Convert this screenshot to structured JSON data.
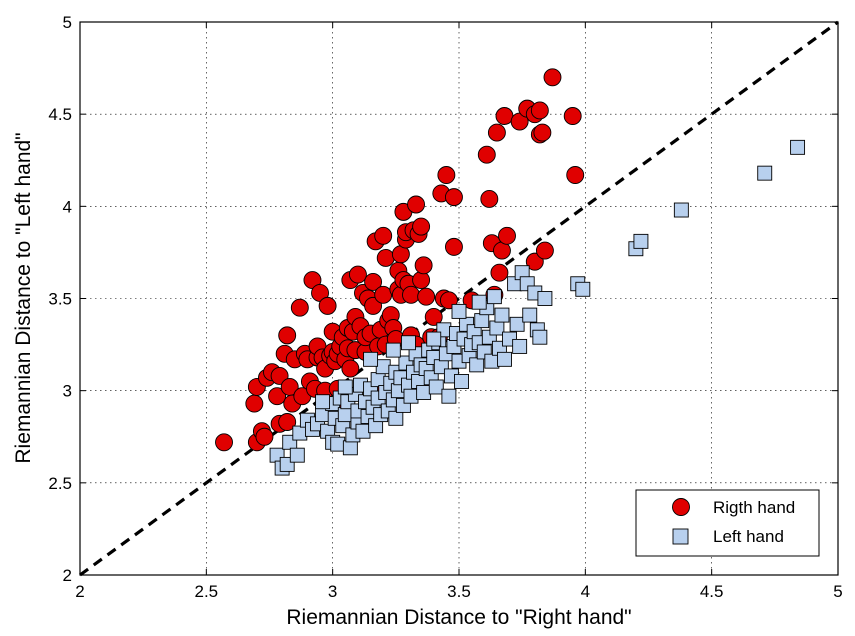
{
  "chart_data": {
    "type": "scatter",
    "title": "",
    "xlabel": "Riemannian Distance to \"Right hand\"",
    "ylabel": "Riemannian Distance to \"Left hand\"",
    "xlim": [
      2,
      5
    ],
    "ylim": [
      2,
      5
    ],
    "xticks": [
      "2",
      "2.5",
      "3",
      "3.5",
      "4",
      "4.5",
      "5"
    ],
    "yticks": [
      "2",
      "2.5",
      "3",
      "3.5",
      "4",
      "4.5",
      "5"
    ],
    "grid": true,
    "reference_line": {
      "style": "dashed",
      "from": [
        2,
        2
      ],
      "to": [
        5,
        5
      ]
    },
    "legend_position": "bottom-right",
    "colors": {
      "right": "#e00000",
      "left": "#b8d0ee",
      "edge": "#000000"
    },
    "series": [
      {
        "name": "Rigth hand",
        "marker": "circle",
        "points": [
          [
            2.57,
            2.72
          ],
          [
            2.69,
            2.93
          ],
          [
            2.7,
            2.72
          ],
          [
            2.7,
            3.02
          ],
          [
            2.72,
            2.78
          ],
          [
            2.73,
            2.75
          ],
          [
            2.74,
            3.07
          ],
          [
            2.76,
            3.1
          ],
          [
            2.78,
            2.97
          ],
          [
            2.79,
            3.08
          ],
          [
            2.79,
            2.82
          ],
          [
            2.81,
            3.2
          ],
          [
            2.82,
            3.3
          ],
          [
            2.83,
            3.02
          ],
          [
            2.84,
            2.93
          ],
          [
            2.85,
            3.17
          ],
          [
            2.87,
            3.45
          ],
          [
            2.88,
            2.97
          ],
          [
            2.89,
            3.2
          ],
          [
            2.9,
            3.17
          ],
          [
            2.91,
            3.05
          ],
          [
            2.92,
            3.6
          ],
          [
            2.93,
            3.01
          ],
          [
            2.94,
            3.18
          ],
          [
            2.94,
            3.24
          ],
          [
            2.95,
            3.53
          ],
          [
            2.96,
            3.18
          ],
          [
            2.97,
            3.12
          ],
          [
            2.97,
            3.0
          ],
          [
            2.98,
            3.46
          ],
          [
            2.99,
            3.19
          ],
          [
            3.0,
            3.32
          ],
          [
            3.0,
            3.21
          ],
          [
            3.01,
            3.16
          ],
          [
            3.02,
            3.2
          ],
          [
            3.02,
            3.01
          ],
          [
            3.03,
            3.24
          ],
          [
            3.04,
            3.29
          ],
          [
            3.05,
            3.17
          ],
          [
            3.06,
            3.34
          ],
          [
            3.06,
            3.23
          ],
          [
            3.07,
            3.6
          ],
          [
            3.07,
            3.12
          ],
          [
            3.08,
            3.32
          ],
          [
            3.09,
            3.22
          ],
          [
            3.09,
            3.4
          ],
          [
            3.1,
            3.63
          ],
          [
            3.11,
            3.35
          ],
          [
            3.12,
            3.53
          ],
          [
            3.13,
            3.21
          ],
          [
            3.13,
            3.29
          ],
          [
            3.14,
            3.5
          ],
          [
            3.15,
            3.31
          ],
          [
            3.16,
            3.46
          ],
          [
            3.16,
            3.59
          ],
          [
            3.17,
            3.81
          ],
          [
            3.18,
            3.24
          ],
          [
            3.19,
            3.33
          ],
          [
            3.2,
            3.84
          ],
          [
            3.2,
            3.52
          ],
          [
            3.21,
            3.72
          ],
          [
            3.21,
            3.25
          ],
          [
            3.22,
            3.38
          ],
          [
            3.23,
            3.41
          ],
          [
            3.24,
            3.34
          ],
          [
            3.25,
            3.28
          ],
          [
            3.26,
            3.55
          ],
          [
            3.26,
            3.65
          ],
          [
            3.27,
            3.74
          ],
          [
            3.27,
            3.52
          ],
          [
            3.28,
            3.6
          ],
          [
            3.28,
            3.97
          ],
          [
            3.29,
            3.82
          ],
          [
            3.29,
            3.86
          ],
          [
            3.3,
            3.58
          ],
          [
            3.31,
            3.3
          ],
          [
            3.31,
            3.52
          ],
          [
            3.32,
            3.87
          ],
          [
            3.33,
            4.01
          ],
          [
            3.33,
            3.25
          ],
          [
            3.34,
            3.85
          ],
          [
            3.35,
            3.89
          ],
          [
            3.35,
            3.6
          ],
          [
            3.36,
            3.68
          ],
          [
            3.37,
            3.51
          ],
          [
            3.38,
            3.2
          ],
          [
            3.39,
            3.29
          ],
          [
            3.4,
            3.4
          ],
          [
            3.42,
            3.29
          ],
          [
            3.43,
            4.07
          ],
          [
            3.44,
            3.5
          ],
          [
            3.45,
            4.17
          ],
          [
            3.46,
            3.49
          ],
          [
            3.48,
            4.05
          ],
          [
            3.48,
            3.78
          ],
          [
            3.55,
            3.49
          ],
          [
            3.61,
            4.28
          ],
          [
            3.62,
            4.04
          ],
          [
            3.63,
            3.8
          ],
          [
            3.64,
            3.52
          ],
          [
            3.65,
            4.4
          ],
          [
            3.66,
            3.64
          ],
          [
            3.67,
            3.76
          ],
          [
            3.68,
            4.49
          ],
          [
            3.69,
            3.84
          ],
          [
            3.74,
            4.46
          ],
          [
            3.77,
            4.53
          ],
          [
            3.8,
            4.5
          ],
          [
            3.82,
            4.52
          ],
          [
            3.82,
            4.39
          ],
          [
            3.83,
            4.4
          ],
          [
            3.8,
            3.7
          ],
          [
            3.84,
            3.76
          ],
          [
            3.87,
            4.7
          ],
          [
            3.95,
            4.49
          ],
          [
            3.96,
            4.17
          ],
          [
            2.82,
            2.83
          ],
          [
            3.04,
            2.95
          ],
          [
            3.19,
            3.02
          ],
          [
            3.36,
            3.05
          ]
        ]
      },
      {
        "name": "Left hand",
        "marker": "square",
        "points": [
          [
            2.78,
            2.65
          ],
          [
            2.8,
            2.58
          ],
          [
            2.82,
            2.6
          ],
          [
            2.83,
            2.72
          ],
          [
            2.86,
            2.65
          ],
          [
            2.87,
            2.77
          ],
          [
            2.9,
            2.84
          ],
          [
            2.92,
            2.79
          ],
          [
            2.94,
            2.82
          ],
          [
            2.96,
            2.87
          ],
          [
            2.98,
            2.78
          ],
          [
            3.0,
            2.93
          ],
          [
            3.0,
            2.72
          ],
          [
            3.01,
            2.85
          ],
          [
            3.02,
            2.71
          ],
          [
            3.03,
            2.96
          ],
          [
            3.04,
            2.81
          ],
          [
            3.05,
            2.87
          ],
          [
            3.06,
            2.94
          ],
          [
            3.07,
            2.69
          ],
          [
            3.08,
            2.76
          ],
          [
            3.09,
            2.98
          ],
          [
            3.1,
            2.83
          ],
          [
            3.1,
            2.89
          ],
          [
            3.11,
            3.03
          ],
          [
            3.12,
            2.78
          ],
          [
            3.13,
            2.94
          ],
          [
            3.14,
            2.86
          ],
          [
            3.15,
            3.01
          ],
          [
            3.16,
            2.91
          ],
          [
            3.17,
            2.81
          ],
          [
            3.18,
            3.06
          ],
          [
            3.18,
            2.96
          ],
          [
            3.19,
            2.87
          ],
          [
            3.2,
            3.13
          ],
          [
            3.21,
            2.99
          ],
          [
            3.22,
            2.89
          ],
          [
            3.23,
            3.04
          ],
          [
            3.24,
            2.95
          ],
          [
            3.25,
            3.1
          ],
          [
            3.25,
            2.85
          ],
          [
            3.26,
            3.0
          ],
          [
            3.27,
            3.07
          ],
          [
            3.28,
            2.92
          ],
          [
            3.29,
            3.15
          ],
          [
            3.3,
            3.03
          ],
          [
            3.31,
            2.97
          ],
          [
            3.32,
            3.1
          ],
          [
            3.33,
            3.2
          ],
          [
            3.34,
            3.05
          ],
          [
            3.35,
            3.14
          ],
          [
            3.36,
            2.99
          ],
          [
            3.37,
            3.12
          ],
          [
            3.38,
            3.22
          ],
          [
            3.39,
            3.07
          ],
          [
            3.4,
            3.18
          ],
          [
            3.41,
            3.02
          ],
          [
            3.42,
            3.26
          ],
          [
            3.43,
            3.13
          ],
          [
            3.44,
            3.33
          ],
          [
            3.45,
            3.2
          ],
          [
            3.46,
            2.97
          ],
          [
            3.47,
            3.08
          ],
          [
            3.48,
            3.24
          ],
          [
            3.49,
            3.31
          ],
          [
            3.5,
            3.16
          ],
          [
            3.51,
            3.05
          ],
          [
            3.52,
            3.28
          ],
          [
            3.53,
            3.36
          ],
          [
            3.54,
            3.19
          ],
          [
            3.55,
            3.25
          ],
          [
            3.56,
            3.32
          ],
          [
            3.57,
            3.14
          ],
          [
            3.58,
            3.26
          ],
          [
            3.59,
            3.38
          ],
          [
            3.6,
            3.21
          ],
          [
            3.61,
            3.45
          ],
          [
            3.62,
            3.29
          ],
          [
            3.63,
            3.16
          ],
          [
            3.64,
            3.51
          ],
          [
            3.65,
            3.34
          ],
          [
            3.66,
            3.23
          ],
          [
            3.67,
            3.41
          ],
          [
            3.68,
            3.17
          ],
          [
            3.7,
            3.28
          ],
          [
            3.72,
            3.58
          ],
          [
            3.73,
            3.36
          ],
          [
            3.74,
            3.24
          ],
          [
            3.75,
            3.64
          ],
          [
            3.77,
            3.58
          ],
          [
            3.78,
            3.41
          ],
          [
            3.8,
            3.53
          ],
          [
            3.81,
            3.33
          ],
          [
            3.82,
            3.29
          ],
          [
            3.84,
            3.5
          ],
          [
            3.97,
            3.58
          ],
          [
            3.99,
            3.55
          ],
          [
            4.2,
            3.77
          ],
          [
            4.22,
            3.81
          ],
          [
            4.38,
            3.98
          ],
          [
            4.71,
            4.18
          ],
          [
            4.84,
            4.32
          ],
          [
            3.3,
            3.26
          ],
          [
            3.24,
            3.22
          ],
          [
            3.15,
            3.17
          ],
          [
            3.4,
            3.28
          ],
          [
            3.05,
            3.02
          ],
          [
            2.96,
            2.94
          ],
          [
            3.5,
            3.43
          ],
          [
            3.58,
            3.48
          ]
        ]
      }
    ]
  }
}
